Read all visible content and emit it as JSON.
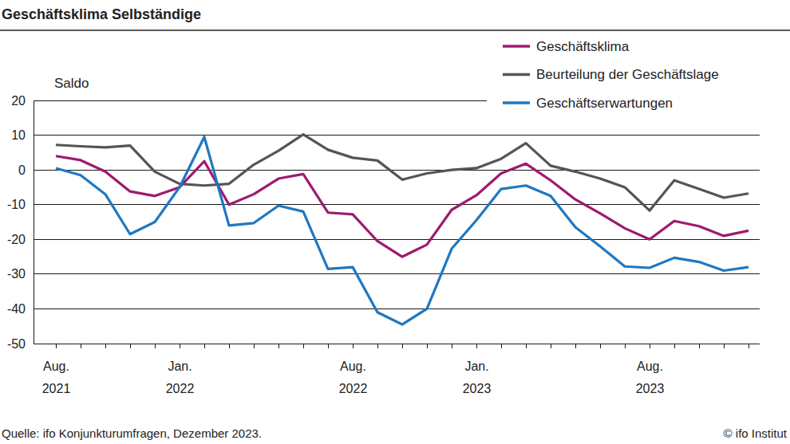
{
  "chart_data": {
    "type": "line",
    "title": "Geschäftsklima Selbständige",
    "y_label": "Saldo",
    "source": "Quelle: ifo Konjunkturumfragen, Dezember 2023.",
    "copyright": "© ifo Institut",
    "categories": [
      "Aug. 2021",
      null,
      null,
      null,
      null,
      "Jan. 2022",
      null,
      null,
      null,
      null,
      null,
      null,
      "Aug. 2022",
      null,
      null,
      null,
      null,
      "Jan. 2023",
      null,
      null,
      null,
      null,
      null,
      null,
      "Aug. 2023",
      null,
      null,
      null,
      null
    ],
    "series": [
      {
        "name": "Geschäftsklima",
        "color": "#9e1a6e",
        "values": [
          4,
          2.8,
          -0.5,
          -6.2,
          -7.5,
          -5,
          2.5,
          -10,
          -7,
          -2.5,
          -1.2,
          -12.3,
          -12.8,
          -20.5,
          -25,
          -21.5,
          -11.5,
          -7.3,
          -1,
          1.8,
          -3,
          -8.5,
          -12.5,
          -16.8,
          -20,
          -14.7,
          -16.2,
          -19,
          -17.5
        ]
      },
      {
        "name": "Beurteilung der Geschäftslage",
        "color": "#555555",
        "values": [
          7.2,
          6.8,
          6.5,
          7,
          -0.5,
          -4,
          -4.5,
          -4,
          1.5,
          5.5,
          10.2,
          5.8,
          3.5,
          2.7,
          -2.8,
          -1,
          0,
          0.5,
          3.2,
          7.7,
          1.2,
          -0.5,
          -2.5,
          -5,
          -11.7,
          -3,
          -5.5,
          -8,
          -6.8
        ]
      },
      {
        "name": "Geschäftserwartungen",
        "color": "#1f78c1",
        "values": [
          0.5,
          -1.5,
          -7,
          -18.5,
          -15,
          -5,
          9.5,
          -16,
          -15.3,
          -10.3,
          -12,
          -28.5,
          -28,
          -41,
          -44.5,
          -40,
          -22.7,
          -14.5,
          -5.5,
          -4.5,
          -7.5,
          -16.5,
          -22,
          -27.8,
          -28.2,
          -25.3,
          -26.5,
          -29,
          -28
        ]
      }
    ],
    "ylim": [
      -50,
      20
    ],
    "yticks": [
      -50,
      -40,
      -30,
      -20,
      -10,
      0,
      10,
      20
    ],
    "grid": true,
    "legend": "top-right"
  }
}
